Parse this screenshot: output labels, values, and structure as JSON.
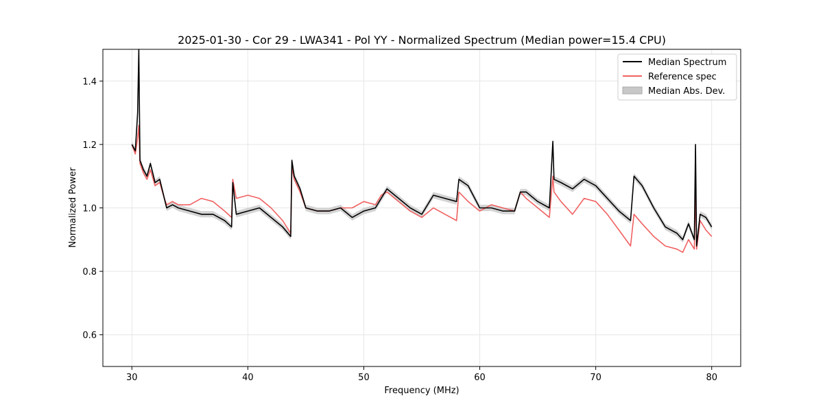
{
  "chart_data": {
    "type": "line",
    "title": "2025-01-30 - Cor 29 - LWA341 - Pol YY - Normalized Spectrum (Median power=15.4 CPU)",
    "xlabel": "Frequency (MHz)",
    "ylabel": "Normalized Power",
    "xlim": [
      27.5,
      82.5
    ],
    "ylim": [
      0.5,
      1.5
    ],
    "xticks": [
      30,
      40,
      50,
      60,
      70,
      80
    ],
    "yticks": [
      0.6,
      0.8,
      1.0,
      1.2,
      1.4
    ],
    "xtick_labels": [
      "30",
      "40",
      "50",
      "60",
      "70",
      "80"
    ],
    "ytick_labels": [
      "0.6",
      "0.8",
      "1.0",
      "1.2",
      "1.4"
    ],
    "grid": true,
    "legend_position": "top-right",
    "legend": [
      {
        "name": "Median Spectrum",
        "kind": "line",
        "color": "#000000"
      },
      {
        "name": "Reference spec",
        "kind": "line",
        "color": "#f06060"
      },
      {
        "name": "Median Abs. Dev.",
        "kind": "patch",
        "color": "#c8c8c8"
      }
    ],
    "series": [
      {
        "name": "Median Spectrum",
        "color": "#000000",
        "x": [
          30.0,
          30.3,
          30.5,
          30.6,
          30.7,
          31.0,
          31.3,
          31.6,
          32.0,
          32.4,
          32.8,
          33.0,
          33.5,
          34.0,
          35.0,
          36.0,
          37.0,
          38.0,
          38.6,
          38.7,
          39.0,
          40.0,
          41.0,
          42.0,
          43.0,
          43.7,
          43.8,
          44.0,
          44.5,
          45.0,
          46.0,
          47.0,
          48.0,
          49.0,
          50.0,
          51.0,
          51.5,
          52.0,
          53.0,
          54.0,
          55.0,
          56.0,
          57.0,
          58.0,
          58.2,
          59.0,
          60.0,
          61.0,
          62.0,
          63.0,
          63.5,
          64.0,
          65.0,
          66.0,
          66.3,
          66.4,
          67.0,
          68.0,
          69.0,
          70.0,
          71.0,
          72.0,
          73.0,
          73.3,
          74.0,
          75.0,
          76.0,
          77.0,
          77.5,
          78.0,
          78.5,
          78.6,
          78.7,
          79.0,
          79.5,
          80.0
        ],
        "y": [
          1.2,
          1.18,
          1.3,
          1.5,
          1.15,
          1.12,
          1.1,
          1.14,
          1.08,
          1.09,
          1.03,
          1.0,
          1.01,
          1.0,
          0.99,
          0.98,
          0.98,
          0.96,
          0.94,
          1.08,
          0.98,
          0.99,
          1.0,
          0.97,
          0.94,
          0.91,
          1.15,
          1.1,
          1.06,
          1.0,
          0.99,
          0.99,
          1.0,
          0.97,
          0.99,
          1.0,
          1.03,
          1.06,
          1.03,
          1.0,
          0.98,
          1.04,
          1.03,
          1.02,
          1.09,
          1.07,
          1.0,
          1.0,
          0.99,
          0.99,
          1.05,
          1.05,
          1.02,
          1.0,
          1.21,
          1.09,
          1.08,
          1.06,
          1.09,
          1.07,
          1.03,
          0.99,
          0.96,
          1.1,
          1.07,
          1.0,
          0.94,
          0.92,
          0.9,
          0.95,
          0.9,
          1.2,
          0.88,
          0.98,
          0.97,
          0.94
        ]
      },
      {
        "name": "Reference spec",
        "color": "#f06060",
        "x": [
          30.0,
          30.3,
          30.5,
          30.6,
          30.7,
          31.0,
          31.3,
          31.6,
          32.0,
          32.4,
          32.8,
          33.0,
          33.5,
          34.0,
          35.0,
          36.0,
          37.0,
          38.0,
          38.6,
          38.7,
          39.0,
          40.0,
          41.0,
          42.0,
          43.0,
          43.7,
          43.8,
          44.0,
          44.5,
          45.0,
          46.0,
          47.0,
          48.0,
          49.0,
          50.0,
          51.0,
          51.5,
          52.0,
          53.0,
          54.0,
          55.0,
          56.0,
          57.0,
          58.0,
          58.2,
          59.0,
          60.0,
          61.0,
          62.0,
          63.0,
          63.5,
          64.0,
          65.0,
          66.0,
          66.3,
          66.4,
          67.0,
          68.0,
          69.0,
          70.0,
          71.0,
          72.0,
          73.0,
          73.3,
          74.0,
          75.0,
          76.0,
          77.0,
          77.5,
          78.0,
          78.5,
          78.6,
          78.7,
          79.0,
          79.5,
          80.0
        ],
        "y": [
          1.2,
          1.17,
          1.22,
          1.26,
          1.14,
          1.11,
          1.09,
          1.12,
          1.07,
          1.08,
          1.03,
          1.01,
          1.02,
          1.01,
          1.01,
          1.03,
          1.02,
          0.99,
          0.97,
          1.09,
          1.03,
          1.04,
          1.03,
          1.0,
          0.96,
          0.92,
          1.13,
          1.09,
          1.05,
          1.0,
          0.99,
          0.99,
          1.0,
          1.0,
          1.02,
          1.01,
          1.04,
          1.05,
          1.02,
          0.99,
          0.97,
          1.0,
          0.98,
          0.96,
          1.05,
          1.02,
          0.99,
          1.01,
          1.0,
          0.99,
          1.05,
          1.03,
          1.0,
          0.97,
          1.1,
          1.05,
          1.02,
          0.98,
          1.03,
          1.02,
          0.98,
          0.93,
          0.88,
          0.98,
          0.95,
          0.91,
          0.88,
          0.87,
          0.86,
          0.9,
          0.87,
          1.06,
          0.87,
          0.96,
          0.93,
          0.91
        ]
      }
    ],
    "band": {
      "name": "Median Abs. Dev.",
      "color": "#c8c8c8",
      "half_width": 0.01
    }
  }
}
